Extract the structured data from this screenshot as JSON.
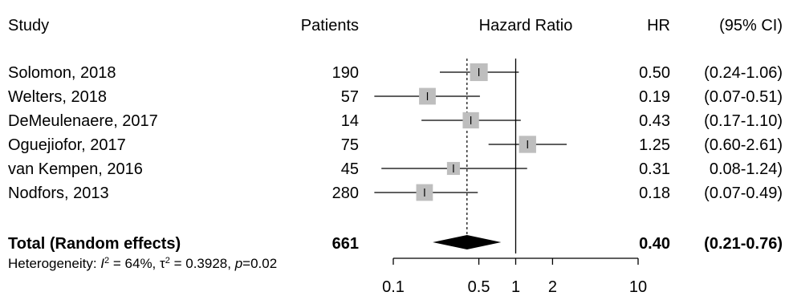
{
  "chart_data": {
    "type": "forest",
    "columns": {
      "study": "Study",
      "patients": "Patients",
      "plot": "Hazard Ratio",
      "hr": "HR",
      "ci": "(95% CI)"
    },
    "studies": [
      {
        "name": "Solomon, 2018",
        "patients": "190",
        "hr_text": "0.50",
        "ci_text": "(0.24-1.06)",
        "hr": 0.5,
        "lo": 0.24,
        "hi": 1.06,
        "weight": 0.85
      },
      {
        "name": "Welters, 2018",
        "patients": "57",
        "hr_text": "0.19",
        "ci_text": "(0.07-0.51)",
        "hr": 0.19,
        "lo": 0.07,
        "hi": 0.51,
        "weight": 0.8
      },
      {
        "name": "DeMeulenaere, 2017",
        "patients": "14",
        "hr_text": "0.43",
        "ci_text": "(0.17-1.10)",
        "hr": 0.43,
        "lo": 0.17,
        "hi": 1.1,
        "weight": 0.78
      },
      {
        "name": "Oguejiofor, 2017",
        "patients": "75",
        "hr_text": "1.25",
        "ci_text": "(0.60-2.61)",
        "hr": 1.25,
        "lo": 0.6,
        "hi": 2.61,
        "weight": 0.82
      },
      {
        "name": "van Kempen, 2016",
        "patients": "45",
        "hr_text": "0.31",
        "ci_text": "0.08-1.24)",
        "hr": 0.31,
        "lo": 0.08,
        "hi": 1.24,
        "weight": 0.62
      },
      {
        "name": "Nodfors, 2013",
        "patients": "280",
        "hr_text": "0.18",
        "ci_text": "(0.07-0.49)",
        "hr": 0.18,
        "lo": 0.07,
        "hi": 0.49,
        "weight": 0.8
      }
    ],
    "total": {
      "label": "Total (Random effects)",
      "patients": "661",
      "hr_text": "0.40",
      "ci_text": "(0.21-0.76)",
      "hr": 0.4,
      "lo": 0.21,
      "hi": 0.76
    },
    "heterogeneity": {
      "prefix": "Heterogeneity: ",
      "i2_sym": "I",
      "i2_val": " = 64%, ",
      "tau_sym": "τ",
      "tau_val": " = 0.3928, ",
      "p_sym": "p",
      "p_val": "=0.02"
    },
    "x_axis": {
      "scale": "log",
      "ticks": [
        0.1,
        0.5,
        1,
        2,
        10
      ],
      "tick_labels": [
        "0.1",
        "0.5",
        "1",
        "2",
        "10"
      ],
      "range": [
        0.1,
        10
      ]
    },
    "null_line": 1,
    "pooled_reference_line": 0.4,
    "colors": {
      "box": "#bebebe",
      "diamond": "#000000",
      "line": "#000000"
    }
  }
}
